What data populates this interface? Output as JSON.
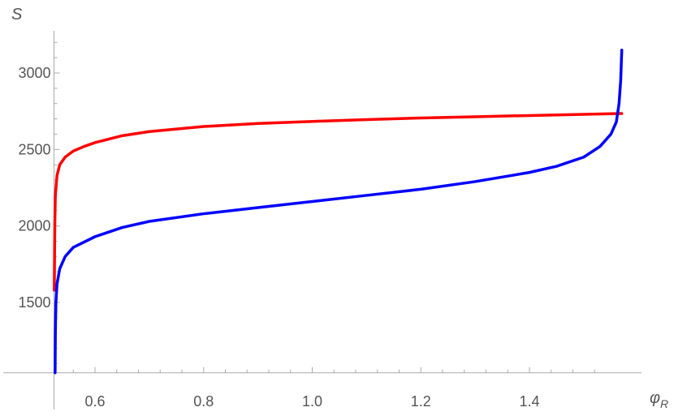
{
  "chart_data": {
    "type": "line",
    "title": "",
    "xlabel": "φ",
    "xlabel_subscript": "R",
    "ylabel": "S",
    "xlim": [
      0.52,
      1.575
    ],
    "ylim": [
      1000,
      3280
    ],
    "x_axis_origin_y": 1040,
    "x_ticks": [
      0.6,
      0.8,
      1.0,
      1.2,
      1.4
    ],
    "x_tick_labels": [
      "0.6",
      "0.8",
      "1.0",
      "1.2",
      "1.4"
    ],
    "y_ticks": [
      1500,
      2000,
      2500,
      3000
    ],
    "y_tick_labels": [
      "1500",
      "2000",
      "2500",
      "3000"
    ],
    "grid": false,
    "series": [
      {
        "color": "#ff0000",
        "x": [
          0.525,
          0.5255,
          0.526,
          0.527,
          0.53,
          0.535,
          0.545,
          0.56,
          0.58,
          0.6,
          0.65,
          0.7,
          0.8,
          0.9,
          1.0,
          1.1,
          1.2,
          1.3,
          1.4,
          1.5,
          1.57
        ],
        "y": [
          1580,
          1800,
          2020,
          2200,
          2330,
          2400,
          2450,
          2490,
          2520,
          2545,
          2590,
          2617,
          2650,
          2670,
          2683,
          2695,
          2706,
          2714,
          2722,
          2730,
          2735
        ]
      },
      {
        "color": "#0000ff",
        "x": [
          0.5265,
          0.527,
          0.528,
          0.53,
          0.535,
          0.545,
          0.56,
          0.6,
          0.65,
          0.7,
          0.8,
          0.9,
          1.0,
          1.1,
          1.2,
          1.3,
          1.4,
          1.45,
          1.5,
          1.53,
          1.55,
          1.56,
          1.565,
          1.568,
          1.57
        ],
        "y": [
          1040,
          1300,
          1500,
          1620,
          1720,
          1800,
          1860,
          1930,
          1990,
          2030,
          2080,
          2120,
          2160,
          2200,
          2240,
          2290,
          2350,
          2390,
          2450,
          2520,
          2600,
          2680,
          2800,
          2950,
          3150
        ]
      }
    ]
  }
}
